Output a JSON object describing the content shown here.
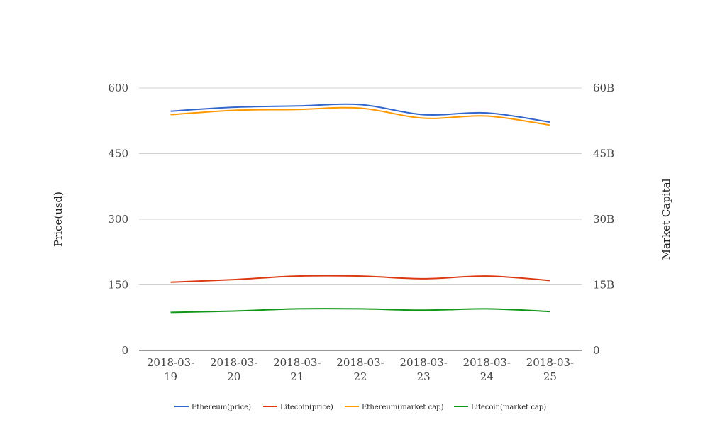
{
  "chart_data": {
    "type": "line",
    "title": "",
    "x": [
      "2018-03-19",
      "2018-03-20",
      "2018-03-21",
      "2018-03-22",
      "2018-03-23",
      "2018-03-24",
      "2018-03-25"
    ],
    "x_tick_labels": [
      [
        "2018-03-",
        "19"
      ],
      [
        "2018-03-",
        "20"
      ],
      [
        "2018-03-",
        "21"
      ],
      [
        "2018-03-",
        "22"
      ],
      [
        "2018-03-",
        "23"
      ],
      [
        "2018-03-",
        "24"
      ],
      [
        "2018-03-",
        "25"
      ]
    ],
    "ylabel": "Price(usd)",
    "y2label": "Market Capital",
    "ylim": [
      0,
      600
    ],
    "y2lim": [
      0,
      60000000000
    ],
    "y_ticks": [
      "0",
      "150",
      "300",
      "450",
      "600"
    ],
    "y2_ticks": [
      "0",
      "15B",
      "30B",
      "45B",
      "60B"
    ],
    "grid": true,
    "legend_position": "bottom",
    "series": [
      {
        "name": "Ethereum(price)",
        "axis": "left",
        "color": "#3366cc",
        "values": [
          547,
          556,
          559,
          562,
          539,
          543,
          522
        ]
      },
      {
        "name": "Litecoin(price)",
        "axis": "left",
        "color": "#dc3912",
        "values": [
          156,
          162,
          170,
          170,
          164,
          170,
          160
        ]
      },
      {
        "name": "Ethereum(market cap)",
        "axis": "right",
        "color": "#ff9900",
        "values": [
          53900000000,
          54900000000,
          55100000000,
          55400000000,
          53100000000,
          53600000000,
          51500000000
        ]
      },
      {
        "name": "Litecoin(market cap)",
        "axis": "right",
        "color": "#109618",
        "values": [
          8700000000,
          9000000000,
          9500000000,
          9500000000,
          9200000000,
          9500000000,
          8900000000
        ]
      }
    ]
  }
}
